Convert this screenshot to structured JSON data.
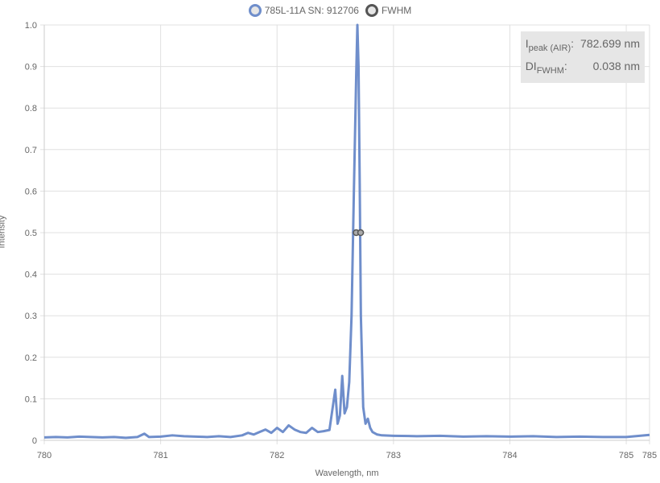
{
  "legend": {
    "series_label": "785L-11A SN: 912706",
    "fwhm_label": "FWHM"
  },
  "colors": {
    "series": "#6f8ecb",
    "fwhm": "#555555",
    "fwhm_fill": "#aaaaaa",
    "grid": "#e0e0e0",
    "stats_bg": "#e6e6e6"
  },
  "stats": {
    "peak_label_main": "I",
    "peak_label_sub": "peak (AIR)",
    "peak_label_suffix": ":",
    "peak_value": "782.699 nm",
    "fwhm_label_main": "DI",
    "fwhm_label_sub": "FWHM",
    "fwhm_label_suffix": ":",
    "fwhm_value": "0.038 nm"
  },
  "chart_data": {
    "type": "line",
    "xlabel": "Wavelength, nm",
    "ylabel": "Intensity",
    "xlim": [
      780,
      785
    ],
    "ylim": [
      0,
      1
    ],
    "x_ticks": [
      "780",
      "781",
      "782",
      "783",
      "784",
      "785",
      "785"
    ],
    "x_tick_values": [
      780,
      781,
      782,
      783,
      784,
      785,
      785.2
    ],
    "y_ticks": [
      "0",
      "0.1",
      "0.2",
      "0.3",
      "0.4",
      "0.5",
      "0.6",
      "0.7",
      "0.8",
      "0.9",
      "1.0"
    ],
    "grid": true,
    "legend_position": "top-center",
    "series": [
      {
        "name": "785L-11A SN: 912706",
        "x": [
          780.0,
          780.1,
          780.2,
          780.3,
          780.4,
          780.5,
          780.6,
          780.7,
          780.8,
          780.86,
          780.9,
          781.0,
          781.1,
          781.2,
          781.3,
          781.4,
          781.5,
          781.6,
          781.7,
          781.75,
          781.8,
          781.85,
          781.9,
          781.95,
          782.0,
          782.05,
          782.1,
          782.15,
          782.2,
          782.25,
          782.3,
          782.35,
          782.4,
          782.45,
          782.5,
          782.52,
          782.54,
          782.56,
          782.58,
          782.6,
          782.62,
          782.64,
          782.66,
          782.68,
          782.69,
          782.7,
          782.71,
          782.72,
          782.74,
          782.76,
          782.78,
          782.8,
          782.82,
          782.86,
          782.9,
          783.0,
          783.2,
          783.4,
          783.6,
          783.8,
          784.0,
          784.2,
          784.4,
          784.6,
          784.8,
          785.0,
          785.2
        ],
        "y": [
          0.007,
          0.008,
          0.007,
          0.009,
          0.008,
          0.007,
          0.008,
          0.006,
          0.008,
          0.016,
          0.008,
          0.009,
          0.012,
          0.01,
          0.009,
          0.008,
          0.01,
          0.008,
          0.012,
          0.018,
          0.014,
          0.02,
          0.026,
          0.018,
          0.03,
          0.02,
          0.036,
          0.026,
          0.02,
          0.018,
          0.03,
          0.02,
          0.022,
          0.025,
          0.122,
          0.04,
          0.06,
          0.155,
          0.065,
          0.08,
          0.14,
          0.3,
          0.6,
          0.88,
          1.0,
          0.9,
          0.62,
          0.3,
          0.08,
          0.04,
          0.052,
          0.03,
          0.02,
          0.014,
          0.012,
          0.011,
          0.01,
          0.011,
          0.009,
          0.01,
          0.009,
          0.01,
          0.008,
          0.009,
          0.008,
          0.008,
          0.013
        ]
      },
      {
        "name": "FWHM",
        "x": [
          782.68,
          782.718
        ],
        "y": [
          0.5,
          0.5
        ]
      }
    ]
  }
}
